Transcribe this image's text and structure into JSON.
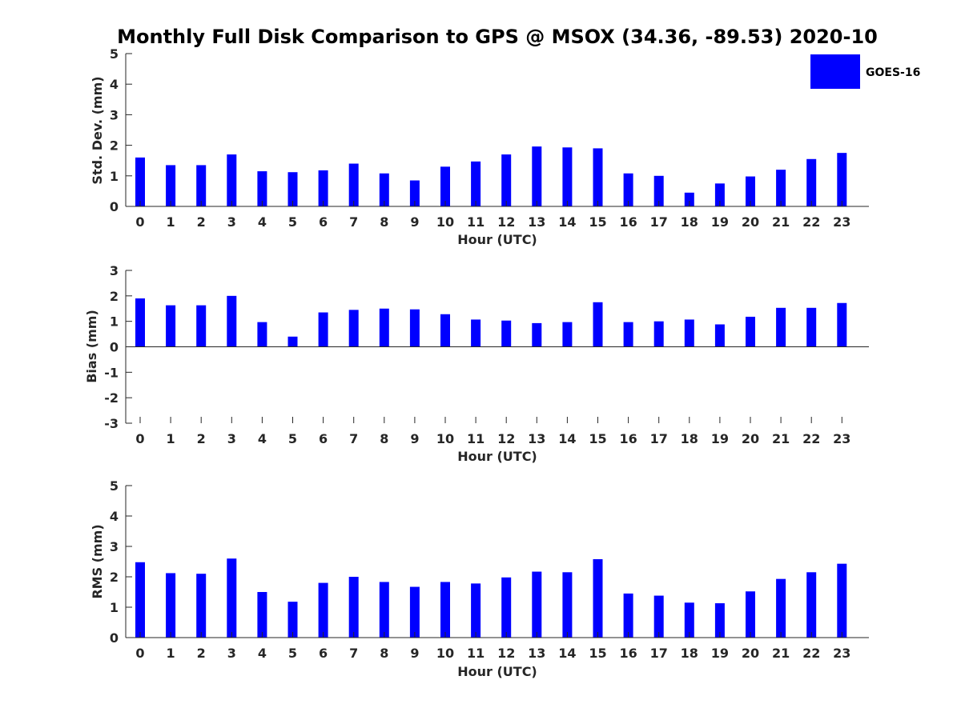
{
  "figure": {
    "title": "Monthly Full Disk Comparison to GPS @ MSOX (34.36, -89.53) 2020-10",
    "legend": {
      "label": "GOES-16",
      "color": "#0000ff",
      "placement": "top-right"
    },
    "bar_color": "#0000ff"
  },
  "chart_data": [
    {
      "type": "bar",
      "xlabel": "Hour (UTC)",
      "ylabel": "Std. Dev. (mm)",
      "ylim": [
        0,
        5
      ],
      "yticks": [
        0,
        1,
        2,
        3,
        4,
        5
      ],
      "categories": [
        "0",
        "1",
        "2",
        "3",
        "4",
        "5",
        "6",
        "7",
        "8",
        "9",
        "10",
        "11",
        "12",
        "13",
        "14",
        "15",
        "16",
        "17",
        "18",
        "19",
        "20",
        "21",
        "22",
        "23"
      ],
      "series": [
        {
          "name": "GOES-16",
          "values": [
            1.6,
            1.35,
            1.35,
            1.7,
            1.15,
            1.12,
            1.18,
            1.4,
            1.08,
            0.85,
            1.3,
            1.47,
            1.7,
            1.96,
            1.93,
            1.9,
            1.08,
            1.0,
            0.45,
            0.75,
            0.98,
            1.2,
            1.55,
            1.75
          ]
        }
      ]
    },
    {
      "type": "bar",
      "xlabel": "Hour (UTC)",
      "ylabel": "Bias (mm)",
      "ylim": [
        -3,
        3
      ],
      "yticks": [
        -3,
        -2,
        -1,
        0,
        1,
        2,
        3
      ],
      "categories": [
        "0",
        "1",
        "2",
        "3",
        "4",
        "5",
        "6",
        "7",
        "8",
        "9",
        "10",
        "11",
        "12",
        "13",
        "14",
        "15",
        "16",
        "17",
        "18",
        "19",
        "20",
        "21",
        "22",
        "23"
      ],
      "series": [
        {
          "name": "GOES-16",
          "values": [
            1.9,
            1.63,
            1.63,
            2.0,
            0.97,
            0.4,
            1.35,
            1.45,
            1.5,
            1.47,
            1.28,
            1.07,
            1.03,
            0.93,
            0.97,
            1.75,
            0.97,
            1.0,
            1.07,
            0.88,
            1.18,
            1.53,
            1.53,
            1.72
          ]
        }
      ]
    },
    {
      "type": "bar",
      "xlabel": "Hour (UTC)",
      "ylabel": "RMS (mm)",
      "ylim": [
        0,
        5
      ],
      "yticks": [
        0,
        1,
        2,
        3,
        4,
        5
      ],
      "categories": [
        "0",
        "1",
        "2",
        "3",
        "4",
        "5",
        "6",
        "7",
        "8",
        "9",
        "10",
        "11",
        "12",
        "13",
        "14",
        "15",
        "16",
        "17",
        "18",
        "19",
        "20",
        "21",
        "22",
        "23"
      ],
      "series": [
        {
          "name": "GOES-16",
          "values": [
            2.48,
            2.12,
            2.1,
            2.6,
            1.5,
            1.18,
            1.8,
            2.0,
            1.83,
            1.67,
            1.83,
            1.78,
            1.98,
            2.17,
            2.15,
            2.58,
            1.45,
            1.38,
            1.15,
            1.13,
            1.52,
            1.93,
            2.15,
            2.43
          ]
        }
      ]
    }
  ]
}
